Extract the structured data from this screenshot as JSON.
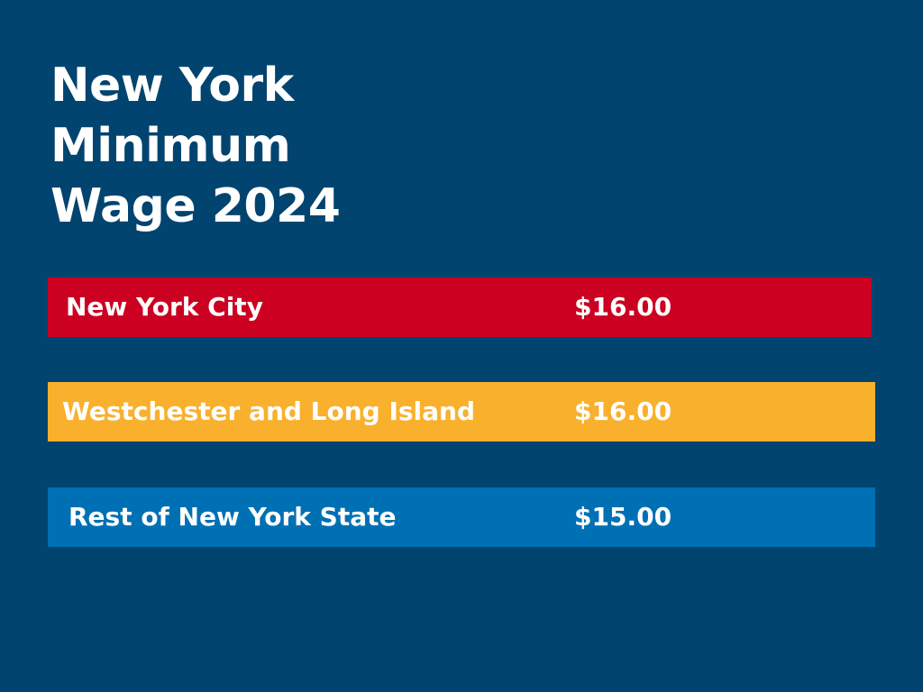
{
  "header": {
    "title_lines": [
      "New York",
      "Minimum",
      "Wage 2024"
    ]
  },
  "table": {
    "rows": [
      [
        "New York City",
        "$16.00"
      ],
      [
        "Westchester and Long Island",
        "$16.00"
      ],
      [
        "Rest of New York State",
        "$15.00"
      ]
    ]
  }
}
